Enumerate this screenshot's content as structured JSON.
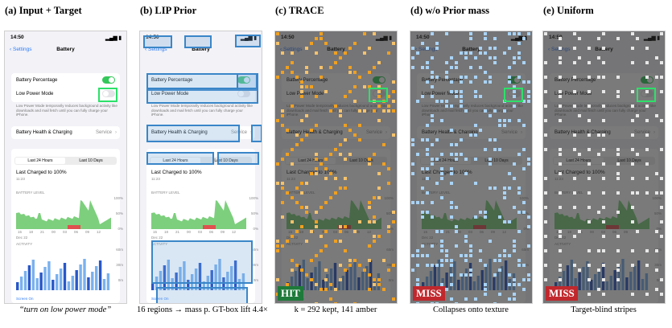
{
  "panels": [
    {
      "title": "(a) Input + Target",
      "caption": "“turn on low power mode”"
    },
    {
      "title": "(b) LIP Prior",
      "caption": "16 regions → mass p. GT-box lift 4.4×"
    },
    {
      "title": "(c) TRACE",
      "caption": "k = 292 kept, 141 amber",
      "badge": "HIT"
    },
    {
      "title": "(d) w/o Prior mass",
      "caption": "Collapses onto texture",
      "badge": "MISS"
    },
    {
      "title": "(e) Uniform",
      "caption": "Target-blind stripes",
      "badge": "MISS"
    }
  ],
  "phone": {
    "time": "14:50",
    "back": "Settings",
    "title": "Battery",
    "battery_percentage": "Battery Percentage",
    "low_power_mode": "Low Power Mode",
    "low_power_note": "Low Power Mode temporarily reduces background activity like downloads and mail fetch until you can fully charge your iPhone.",
    "health": "Battery Health & Charging",
    "service": "Service",
    "tab_24h": "Last 24 Hours",
    "tab_10d": "Last 10 Days",
    "last_charged": "Last Charged to 100%",
    "last_charged_time": "11:23",
    "battery_level": "BATTERY LEVEL",
    "activity": "ACTIVITY",
    "screen_on": "Screen On",
    "level_ticks": [
      "100%",
      "50%",
      "0%"
    ],
    "activity_ticks": [
      "60m",
      "30m",
      "0m"
    ],
    "hour_labels": [
      "15",
      "18",
      "21",
      "00",
      "03",
      "06",
      "09",
      "12"
    ],
    "date_label": "Dec 22"
  },
  "colors": {
    "toggle_on": "#34c759",
    "link": "#2f7cf6",
    "target": "#2de06a",
    "kept": "#f5c26b",
    "amber": "#f0a020",
    "blue_kept": "#a9d3f5",
    "hit": "#1e7a3a",
    "miss": "#c0282d"
  }
}
